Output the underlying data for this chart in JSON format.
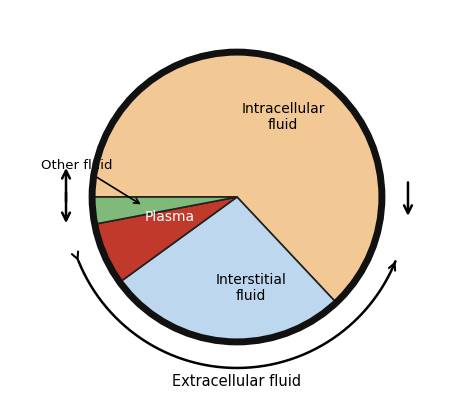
{
  "slices": [
    {
      "label": "Intracellular\nfluid",
      "value": 63,
      "color": "#F2C894",
      "text_color": "#000000"
    },
    {
      "label": "Interstitial\nfluid",
      "value": 27,
      "color": "#BDD7EE",
      "text_color": "#000000"
    },
    {
      "label": "Plasma",
      "value": 7,
      "color": "#C0392B",
      "text_color": "#ffffff"
    },
    {
      "label": "Other fluid",
      "value": 3,
      "color": "#7FBA7A",
      "text_color": "#000000"
    }
  ],
  "startangle": 180,
  "background_color": "#ffffff",
  "outer_arrow_label": "Extracellular fluid",
  "other_fluid_annotation": "Other fluid",
  "label_fontsize": 10,
  "wedge_edgecolor": "#222222",
  "wedge_linewidth": 1.2,
  "outer_circle_linewidth": 5.0,
  "outer_circle_color": "#111111"
}
